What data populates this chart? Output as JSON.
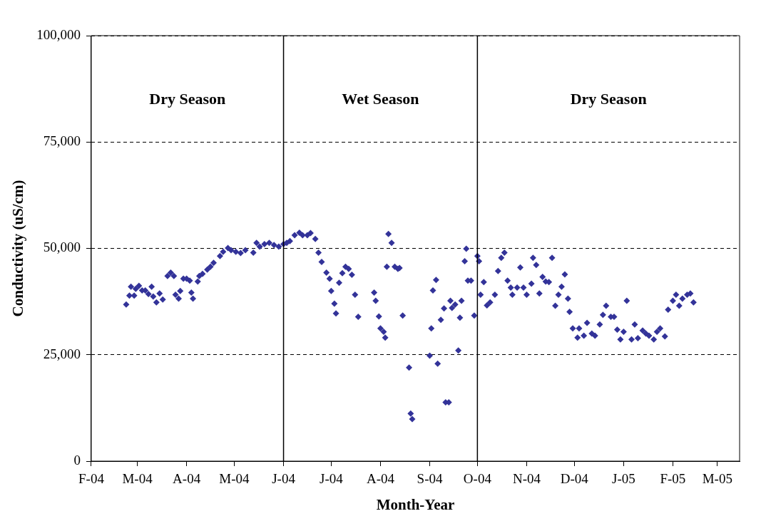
{
  "chart_data": {
    "type": "scatter",
    "xlabel": "Month-Year",
    "ylabel": "Conductivity (uS/cm)",
    "xlim": [
      "2004-02-01",
      "2005-03-15"
    ],
    "ylim": [
      0,
      100000
    ],
    "xticks": [
      {
        "value": "2004-02-01",
        "label": "F-04"
      },
      {
        "value": "2004-03-01",
        "label": "M-04"
      },
      {
        "value": "2004-04-01",
        "label": "A-04"
      },
      {
        "value": "2004-05-01",
        "label": "M-04"
      },
      {
        "value": "2004-06-01",
        "label": "J-04"
      },
      {
        "value": "2004-07-01",
        "label": "J-04"
      },
      {
        "value": "2004-08-01",
        "label": "A-04"
      },
      {
        "value": "2004-09-01",
        "label": "S-04"
      },
      {
        "value": "2004-10-01",
        "label": "O-04"
      },
      {
        "value": "2004-11-01",
        "label": "N-04"
      },
      {
        "value": "2004-12-01",
        "label": "D-04"
      },
      {
        "value": "2005-01-01",
        "label": "J-05"
      },
      {
        "value": "2005-02-01",
        "label": "F-05"
      },
      {
        "value": "2005-03-01",
        "label": "M-05"
      }
    ],
    "yticks": [
      {
        "value": 0,
        "label": "0"
      },
      {
        "value": 25000,
        "label": "25,000"
      },
      {
        "value": 50000,
        "label": "50,000"
      },
      {
        "value": 75000,
        "label": "75,000"
      },
      {
        "value": 100000,
        "label": "100,000"
      }
    ],
    "grid": "y",
    "legend": false,
    "marker": "diamond",
    "ref_lines": [
      {
        "axis": "x",
        "value": "2004-06-01"
      },
      {
        "axis": "x",
        "value": "2004-10-01"
      }
    ],
    "annotations": [
      "Dry Season",
      "Wet Season",
      "Dry Season"
    ],
    "series": [
      {
        "color": "#333399",
        "x": [
          "2004-02-23",
          "2004-02-25",
          "2004-02-26",
          "2004-02-28",
          "2004-02-29",
          "2004-03-02",
          "2004-03-04",
          "2004-03-06",
          "2004-03-08",
          "2004-03-10",
          "2004-03-11",
          "2004-03-13",
          "2004-03-15",
          "2004-03-17",
          "2004-03-20",
          "2004-03-22",
          "2004-03-24",
          "2004-03-25",
          "2004-03-27",
          "2004-03-28",
          "2004-03-30",
          "2004-04-01",
          "2004-04-03",
          "2004-04-04",
          "2004-04-05",
          "2004-04-08",
          "2004-04-09",
          "2004-04-11",
          "2004-04-14",
          "2004-04-16",
          "2004-04-18",
          "2004-04-22",
          "2004-04-24",
          "2004-04-27",
          "2004-04-29",
          "2004-05-02",
          "2004-05-05",
          "2004-05-08",
          "2004-05-13",
          "2004-05-15",
          "2004-05-17",
          "2004-05-20",
          "2004-05-23",
          "2004-05-26",
          "2004-05-29",
          "2004-06-01",
          "2004-06-03",
          "2004-06-05",
          "2004-06-08",
          "2004-06-11",
          "2004-06-13",
          "2004-06-16",
          "2004-06-18",
          "2004-06-21",
          "2004-06-23",
          "2004-06-25",
          "2004-06-28",
          "2004-06-30",
          "2004-07-01",
          "2004-07-03",
          "2004-07-04",
          "2004-07-06",
          "2004-07-08",
          "2004-07-10",
          "2004-07-12",
          "2004-07-14",
          "2004-07-16",
          "2004-07-18",
          "2004-07-28",
          "2004-07-29",
          "2004-07-31",
          "2004-08-01",
          "2004-08-03",
          "2004-08-04",
          "2004-08-05",
          "2004-08-06",
          "2004-08-08",
          "2004-08-10",
          "2004-08-12",
          "2004-08-13",
          "2004-08-15",
          "2004-08-19",
          "2004-08-20",
          "2004-08-21",
          "2004-09-01",
          "2004-09-02",
          "2004-09-03",
          "2004-09-05",
          "2004-09-06",
          "2004-09-08",
          "2004-09-10",
          "2004-09-11",
          "2004-09-13",
          "2004-09-14",
          "2004-09-15",
          "2004-09-17",
          "2004-09-19",
          "2004-09-20",
          "2004-09-21",
          "2004-09-23",
          "2004-09-24",
          "2004-09-25",
          "2004-09-27",
          "2004-09-29",
          "2004-10-01",
          "2004-10-02",
          "2004-10-03",
          "2004-10-05",
          "2004-10-07",
          "2004-10-09",
          "2004-10-12",
          "2004-10-14",
          "2004-10-16",
          "2004-10-18",
          "2004-10-20",
          "2004-10-22",
          "2004-10-23",
          "2004-10-26",
          "2004-10-28",
          "2004-10-30",
          "2004-11-01",
          "2004-11-04",
          "2004-11-05",
          "2004-11-07",
          "2004-11-09",
          "2004-11-11",
          "2004-11-13",
          "2004-11-15",
          "2004-11-17",
          "2004-11-19",
          "2004-11-21",
          "2004-11-23",
          "2004-11-25",
          "2004-11-27",
          "2004-11-28",
          "2004-11-30",
          "2004-12-03",
          "2004-12-04",
          "2004-12-07",
          "2004-12-09",
          "2004-12-12",
          "2004-12-14",
          "2004-12-17",
          "2004-12-19",
          "2004-12-21",
          "2004-12-24",
          "2004-12-26",
          "2004-12-28",
          "2004-12-30",
          "2005-01-01",
          "2005-01-03",
          "2005-01-06",
          "2005-01-08",
          "2005-01-10",
          "2005-01-13",
          "2005-01-15",
          "2005-01-17",
          "2005-01-20",
          "2005-01-22",
          "2005-01-24",
          "2005-01-27",
          "2005-01-29",
          "2005-02-01",
          "2005-02-03",
          "2005-02-05",
          "2005-02-07",
          "2005-02-10",
          "2005-02-12",
          "2005-02-14"
        ],
        "values": [
          36800,
          38900,
          41000,
          38900,
          40500,
          41200,
          40100,
          40100,
          39300,
          41000,
          38700,
          37300,
          39400,
          38000,
          43500,
          44300,
          43500,
          39100,
          38200,
          40000,
          42900,
          42900,
          42400,
          39600,
          38200,
          42200,
          43500,
          44000,
          45000,
          45700,
          46600,
          48200,
          49200,
          50100,
          49600,
          49200,
          48900,
          49600,
          49000,
          51300,
          50400,
          51000,
          51300,
          50800,
          50400,
          51000,
          51300,
          51700,
          53100,
          53700,
          53100,
          53100,
          53600,
          52200,
          49000,
          46800,
          44300,
          42900,
          40000,
          37000,
          34700,
          41900,
          44200,
          45700,
          45200,
          43800,
          39100,
          33900,
          39600,
          37700,
          34000,
          31200,
          30400,
          29000,
          45700,
          53400,
          51300,
          45700,
          45200,
          45400,
          34200,
          22000,
          11200,
          9900,
          24800,
          31200,
          40100,
          42600,
          22900,
          33200,
          35900,
          13800,
          13800,
          37700,
          36000,
          36800,
          26000,
          33700,
          37700,
          47000,
          49900,
          42400,
          42400,
          34200,
          48200,
          47000,
          39100,
          42100,
          36600,
          37300,
          39100,
          44700,
          47800,
          49000,
          42400,
          40800,
          39100,
          40800,
          45500,
          40800,
          39100,
          41700,
          47800,
          46100,
          39400,
          43300,
          42200,
          42100,
          47800,
          36500,
          39100,
          41000,
          43900,
          38200,
          35100,
          31200,
          29000,
          31200,
          29500,
          32500,
          30000,
          29500,
          32100,
          34400,
          36500,
          33900,
          33900,
          30900,
          28600,
          30400,
          37700,
          28600,
          32100,
          28900,
          30700,
          30000,
          29500,
          28600,
          30400,
          31200,
          29300,
          35600,
          37700,
          39100,
          36500,
          38200,
          39100,
          39400,
          37300
        ]
      }
    ]
  }
}
